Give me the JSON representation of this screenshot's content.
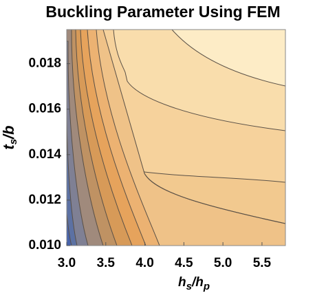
{
  "chart_data": {
    "type": "contour",
    "title": "Buckling Parameter Using FEM",
    "xlabel": [
      "h",
      "s",
      "/h",
      "p"
    ],
    "ylabel": [
      "t",
      "s",
      "/b"
    ],
    "xlim": [
      3.0,
      5.8
    ],
    "ylim": [
      0.01,
      0.0195
    ],
    "xticks": [
      {
        "value": 3.0,
        "label": "3.0"
      },
      3.5,
      {
        "value": 4.0,
        "label": "4.0"
      },
      4.5,
      {
        "value": 5.0,
        "label": "5.0"
      },
      5.5
    ],
    "yticks": [
      {
        "value": 0.01,
        "label": "0.010"
      },
      0.012,
      0.014,
      0.016,
      0.018
    ]
  }
}
